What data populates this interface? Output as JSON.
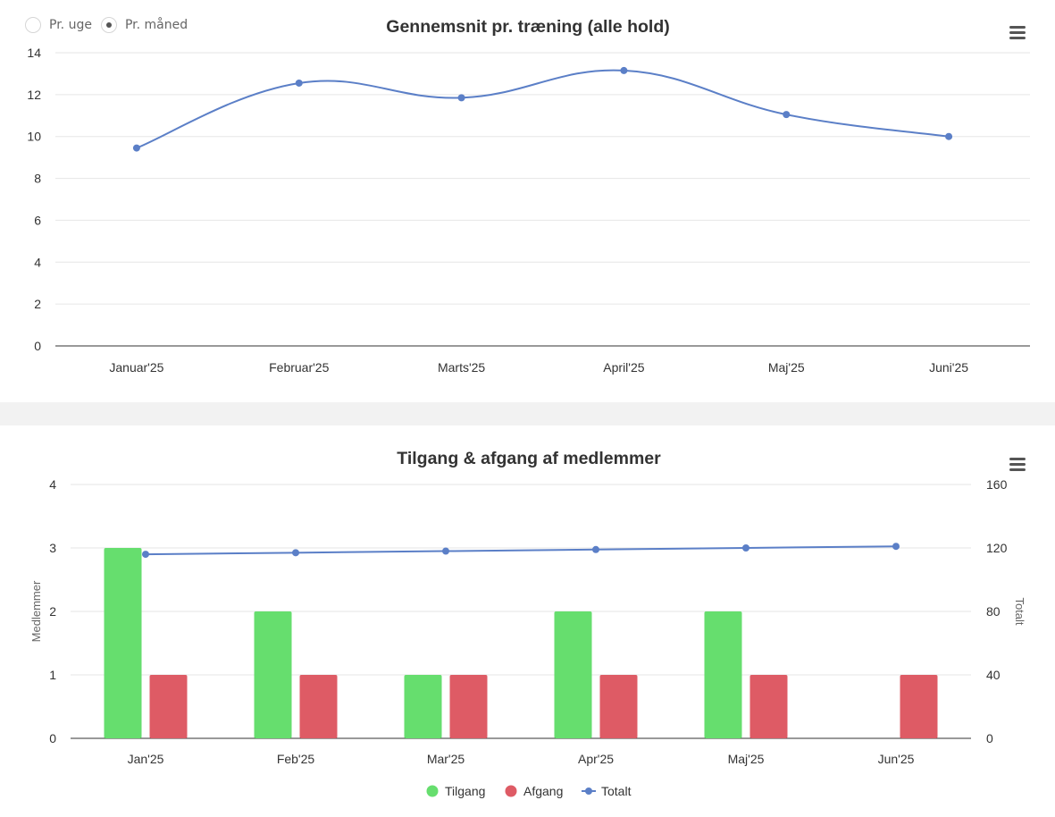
{
  "controls": {
    "radio_week": "Pr. uge",
    "radio_month": "Pr. måned",
    "selected": "month"
  },
  "icons": {
    "menu_icon": "hamburger-menu-icon"
  },
  "colors": {
    "line": "#5b7fc7",
    "tilgang": "#66de6e",
    "afgang": "#de5b65",
    "divider": "#f2f2f2"
  },
  "chart_data": [
    {
      "type": "line",
      "title": "Gennemsnit pr. træning (alle hold)",
      "categories": [
        "Januar'25",
        "Februar'25",
        "Marts'25",
        "April'25",
        "Maj'25",
        "Juni'25"
      ],
      "series": [
        {
          "values": [
            9.45,
            12.55,
            11.85,
            13.15,
            11.05,
            10.0
          ]
        }
      ],
      "y_ticks": [
        "0",
        "2",
        "4",
        "6",
        "8",
        "10",
        "12",
        "14"
      ],
      "ylim": [
        0,
        14
      ],
      "grid": true,
      "smooth": true
    },
    {
      "type": "bar",
      "title": "Tilgang & afgang af medlemmer",
      "categories": [
        "Jan'25",
        "Feb'25",
        "Mar'25",
        "Apr'25",
        "Maj'25",
        "Jun'25"
      ],
      "series": [
        {
          "name": "Tilgang",
          "type": "bar",
          "axis": "left",
          "values": [
            3,
            2,
            1,
            2,
            2,
            0
          ]
        },
        {
          "name": "Afgang",
          "type": "bar",
          "axis": "left",
          "values": [
            1,
            1,
            1,
            1,
            1,
            1
          ]
        },
        {
          "name": "Totalt",
          "type": "line",
          "axis": "right",
          "values": [
            116,
            117,
            118,
            119,
            120,
            121
          ]
        }
      ],
      "ylabel": "Medlemmer",
      "y2label": "Totalt",
      "y_ticks": [
        "0",
        "1",
        "2",
        "3",
        "4"
      ],
      "y2_ticks": [
        "0",
        "40",
        "80",
        "120",
        "160"
      ],
      "ylim": [
        0,
        4
      ],
      "y2lim": [
        0,
        160
      ],
      "grid": true,
      "legend": "bottom-center"
    }
  ]
}
